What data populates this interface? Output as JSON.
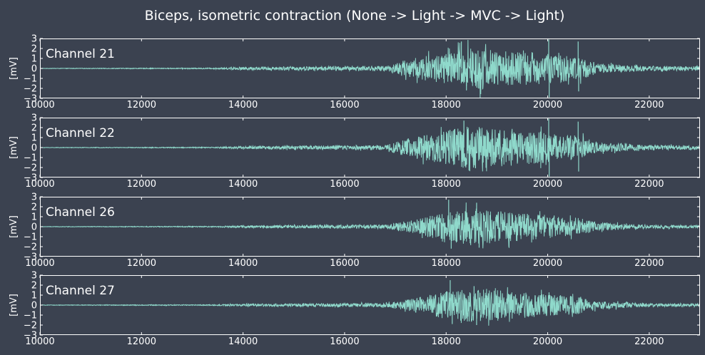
{
  "figure": {
    "title": "Biceps, isometric contraction (None -> Light -> MVC -> Light)",
    "background": "#3b4250",
    "line_color": "#8fd9cb",
    "axis_color": "#ffffff"
  },
  "chart_data": [
    {
      "type": "line",
      "panel_label": "Channel 21",
      "ylabel": "[mV]",
      "xlim": [
        10000,
        23000
      ],
      "ylim": [
        -3,
        3
      ],
      "xticks": [
        10000,
        12000,
        14000,
        16000,
        18000,
        20000,
        22000
      ],
      "yticks": [
        3,
        2,
        1,
        0,
        -1,
        -2,
        -3
      ],
      "ytick_labels": [
        "3",
        "2",
        "1",
        "0",
        "−1",
        "−2",
        "−3"
      ],
      "legend": false,
      "grid": false,
      "envelope": [
        {
          "x": 10000,
          "amp": 0.02
        },
        {
          "x": 13400,
          "amp": 0.05
        },
        {
          "x": 14000,
          "amp": 0.15
        },
        {
          "x": 16800,
          "amp": 0.25
        },
        {
          "x": 17300,
          "amp": 1.0
        },
        {
          "x": 18000,
          "amp": 1.6
        },
        {
          "x": 18500,
          "amp": 2.3
        },
        {
          "x": 19000,
          "amp": 1.8
        },
        {
          "x": 19800,
          "amp": 1.6
        },
        {
          "x": 20600,
          "amp": 1.2
        },
        {
          "x": 21000,
          "amp": 0.5
        },
        {
          "x": 22000,
          "amp": 0.25
        },
        {
          "x": 23000,
          "amp": 0.22
        }
      ],
      "spikes": [
        {
          "x": 18300,
          "y": 2.7
        },
        {
          "x": 18400,
          "y": -2.2
        },
        {
          "x": 20020,
          "y": 2.9
        },
        {
          "x": 20030,
          "y": -2.9
        },
        {
          "x": 20600,
          "y": 2.7
        },
        {
          "x": 20610,
          "y": -2.3
        }
      ]
    },
    {
      "type": "line",
      "panel_label": "Channel 22",
      "ylabel": "[mV]",
      "xlim": [
        10000,
        23000
      ],
      "ylim": [
        -3,
        3
      ],
      "xticks": [
        10000,
        12000,
        14000,
        16000,
        18000,
        20000,
        22000
      ],
      "yticks": [
        3,
        2,
        1,
        0,
        -1,
        -2,
        -3
      ],
      "ytick_labels": [
        "3",
        "2",
        "1",
        "0",
        "−1",
        "−2",
        "−3"
      ],
      "legend": false,
      "grid": false,
      "envelope": [
        {
          "x": 10000,
          "amp": 0.02
        },
        {
          "x": 13400,
          "amp": 0.05
        },
        {
          "x": 14000,
          "amp": 0.15
        },
        {
          "x": 16800,
          "amp": 0.25
        },
        {
          "x": 17300,
          "amp": 1.0
        },
        {
          "x": 18000,
          "amp": 1.7
        },
        {
          "x": 18500,
          "amp": 2.2
        },
        {
          "x": 19000,
          "amp": 1.8
        },
        {
          "x": 19800,
          "amp": 1.6
        },
        {
          "x": 20600,
          "amp": 1.2
        },
        {
          "x": 21000,
          "amp": 0.5
        },
        {
          "x": 22000,
          "amp": 0.25
        },
        {
          "x": 23000,
          "amp": 0.22
        }
      ],
      "spikes": [
        {
          "x": 18350,
          "y": 2.7
        },
        {
          "x": 18450,
          "y": -2.3
        },
        {
          "x": 20020,
          "y": 2.9
        },
        {
          "x": 20030,
          "y": -2.9
        },
        {
          "x": 20600,
          "y": 2.6
        },
        {
          "x": 20610,
          "y": -2.4
        }
      ]
    },
    {
      "type": "line",
      "panel_label": "Channel 26",
      "ylabel": "[mV]",
      "xlim": [
        10000,
        23000
      ],
      "ylim": [
        -3,
        3
      ],
      "xticks": [
        10000,
        12000,
        14000,
        16000,
        18000,
        20000,
        22000
      ],
      "yticks": [
        3,
        2,
        1,
        0,
        -1,
        -2,
        -3
      ],
      "ytick_labels": [
        "3",
        "2",
        "1",
        "0",
        "−1",
        "−2",
        "−3"
      ],
      "legend": false,
      "grid": false,
      "envelope": [
        {
          "x": 10000,
          "amp": 0.02
        },
        {
          "x": 13400,
          "amp": 0.05
        },
        {
          "x": 14000,
          "amp": 0.12
        },
        {
          "x": 16800,
          "amp": 0.2
        },
        {
          "x": 17300,
          "amp": 0.6
        },
        {
          "x": 18000,
          "amp": 1.5
        },
        {
          "x": 18500,
          "amp": 1.9
        },
        {
          "x": 19000,
          "amp": 1.6
        },
        {
          "x": 19800,
          "amp": 1.3
        },
        {
          "x": 20600,
          "amp": 0.9
        },
        {
          "x": 21000,
          "amp": 0.4
        },
        {
          "x": 22000,
          "amp": 0.18
        },
        {
          "x": 23000,
          "amp": 0.15
        }
      ],
      "spikes": [
        {
          "x": 18050,
          "y": 2.7
        },
        {
          "x": 18100,
          "y": -2.2
        },
        {
          "x": 18600,
          "y": 2.4
        },
        {
          "x": 18650,
          "y": -2.1
        }
      ]
    },
    {
      "type": "line",
      "panel_label": "Channel 27",
      "ylabel": "[mV]",
      "xlim": [
        10000,
        23000
      ],
      "ylim": [
        -3,
        3
      ],
      "xticks": [
        10000,
        12000,
        14000,
        16000,
        18000,
        20000,
        22000
      ],
      "yticks": [
        3,
        2,
        1,
        0,
        -1,
        -2,
        -3
      ],
      "ytick_labels": [
        "3",
        "2",
        "1",
        "0",
        "−1",
        "−2",
        "−3"
      ],
      "legend": false,
      "grid": false,
      "envelope": [
        {
          "x": 10000,
          "amp": 0.02
        },
        {
          "x": 13400,
          "amp": 0.05
        },
        {
          "x": 14000,
          "amp": 0.12
        },
        {
          "x": 16800,
          "amp": 0.2
        },
        {
          "x": 17300,
          "amp": 0.6
        },
        {
          "x": 18000,
          "amp": 1.4
        },
        {
          "x": 18500,
          "amp": 1.7
        },
        {
          "x": 19000,
          "amp": 1.5
        },
        {
          "x": 19800,
          "amp": 1.2
        },
        {
          "x": 20600,
          "amp": 0.9
        },
        {
          "x": 21000,
          "amp": 0.4
        },
        {
          "x": 22000,
          "amp": 0.18
        },
        {
          "x": 23000,
          "amp": 0.15
        }
      ],
      "spikes": [
        {
          "x": 18080,
          "y": 2.5
        },
        {
          "x": 18120,
          "y": -1.9
        },
        {
          "x": 18550,
          "y": 1.9
        },
        {
          "x": 18600,
          "y": -2.0
        }
      ]
    }
  ]
}
